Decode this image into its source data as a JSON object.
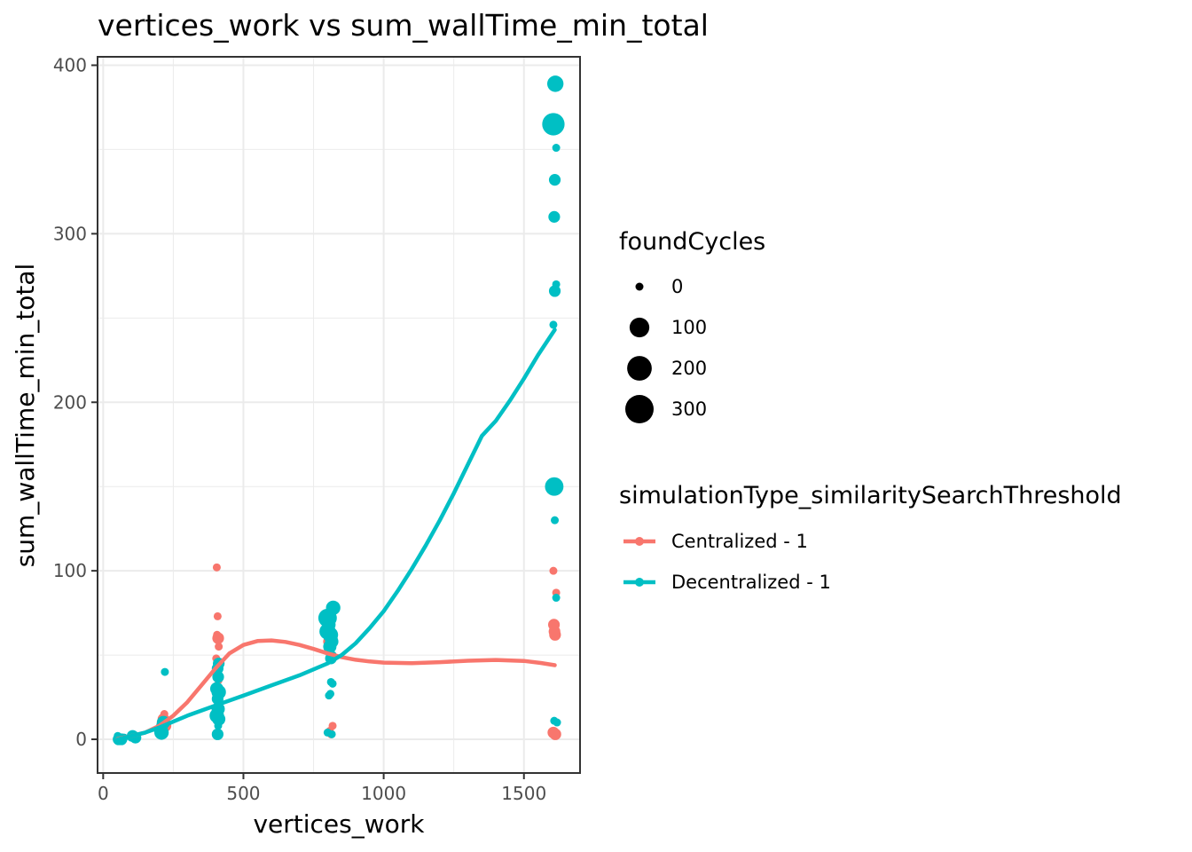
{
  "chart_data": {
    "type": "scatter",
    "title": "vertices_work  vs  sum_wallTime_min_total",
    "xlabel": "vertices_work",
    "ylabel": "sum_wallTime_min_total",
    "xlim": [
      -20,
      1700
    ],
    "ylim": [
      -20,
      405
    ],
    "xticks": [
      0,
      500,
      1000,
      1500
    ],
    "yticks": [
      0,
      100,
      200,
      300,
      400
    ],
    "grid": true,
    "size_legend": {
      "title": "foundCycles",
      "values": [
        0,
        100,
        200,
        300
      ]
    },
    "color_legend": {
      "title": "simulationType_similaritySearchThreshold",
      "entries": [
        "Centralized - 1",
        "Decentralized - 1"
      ]
    },
    "series": [
      {
        "name": "Centralized - 1",
        "color": "#f8766d",
        "points": [
          [
            52,
            1,
            0
          ],
          [
            60,
            0,
            0
          ],
          [
            70,
            1,
            0
          ],
          [
            105,
            1,
            0
          ],
          [
            112,
            2,
            0
          ],
          [
            208,
            4,
            10
          ],
          [
            210,
            6,
            10
          ],
          [
            212,
            10,
            10
          ],
          [
            215,
            12,
            10
          ],
          [
            218,
            15,
            0
          ],
          [
            222,
            8,
            10
          ],
          [
            405,
            102,
            0
          ],
          [
            408,
            73,
            0
          ],
          [
            406,
            62,
            0
          ],
          [
            410,
            60,
            10
          ],
          [
            412,
            55,
            0
          ],
          [
            403,
            48,
            0
          ],
          [
            407,
            42,
            0
          ],
          [
            411,
            35,
            0
          ],
          [
            805,
            58,
            10
          ],
          [
            815,
            60,
            10
          ],
          [
            810,
            50,
            0
          ],
          [
            808,
            5,
            0
          ],
          [
            812,
            3,
            0
          ],
          [
            818,
            8,
            0
          ],
          [
            1605,
            100,
            0
          ],
          [
            1615,
            87,
            0
          ],
          [
            1607,
            68,
            10
          ],
          [
            1611,
            62,
            10
          ],
          [
            1609,
            64,
            10
          ],
          [
            1605,
            4,
            10
          ],
          [
            1612,
            3,
            10
          ]
        ],
        "smooth": [
          [
            52,
            0.3
          ],
          [
            100,
            2
          ],
          [
            150,
            4
          ],
          [
            200,
            8
          ],
          [
            250,
            14
          ],
          [
            300,
            22
          ],
          [
            350,
            32
          ],
          [
            400,
            42
          ],
          [
            450,
            51
          ],
          [
            500,
            56
          ],
          [
            550,
            58.3
          ],
          [
            600,
            58.7
          ],
          [
            650,
            57.8
          ],
          [
            700,
            56
          ],
          [
            750,
            53.6
          ],
          [
            800,
            51
          ],
          [
            850,
            48.8
          ],
          [
            900,
            47.2
          ],
          [
            950,
            46.2
          ],
          [
            1000,
            45.5
          ],
          [
            1100,
            45.2
          ],
          [
            1200,
            45.8
          ],
          [
            1300,
            46.6
          ],
          [
            1400,
            47.1
          ],
          [
            1500,
            46.5
          ],
          [
            1560,
            45.3
          ],
          [
            1610,
            44
          ]
        ]
      },
      {
        "name": "Decentralized - 1",
        "color": "#00bfc4",
        "points": [
          [
            1612,
            389,
            50
          ],
          [
            1605,
            365,
            150
          ],
          [
            1615,
            351,
            0
          ],
          [
            1610,
            332,
            10
          ],
          [
            1608,
            310,
            10
          ],
          [
            1615,
            270,
            0
          ],
          [
            1610,
            266,
            10
          ],
          [
            1605,
            246,
            0
          ],
          [
            1608,
            150,
            80
          ],
          [
            1610,
            130,
            0
          ],
          [
            1615,
            84,
            0
          ],
          [
            1608,
            11,
            0
          ],
          [
            1618,
            10,
            0
          ],
          [
            220,
            40,
            0
          ],
          [
            210,
            8,
            10
          ],
          [
            205,
            5,
            20
          ],
          [
            215,
            10,
            20
          ],
          [
            208,
            4,
            30
          ],
          [
            52,
            2,
            0
          ],
          [
            55,
            0,
            10
          ],
          [
            65,
            0,
            10
          ],
          [
            75,
            1,
            0
          ],
          [
            100,
            1,
            0
          ],
          [
            105,
            2,
            10
          ],
          [
            115,
            1,
            10
          ],
          [
            412,
            45,
            10
          ],
          [
            408,
            42,
            10
          ],
          [
            410,
            37,
            10
          ],
          [
            405,
            30,
            20
          ],
          [
            412,
            28,
            30
          ],
          [
            408,
            24,
            10
          ],
          [
            410,
            18,
            20
          ],
          [
            405,
            14,
            30
          ],
          [
            412,
            12,
            20
          ],
          [
            410,
            8,
            0
          ],
          [
            408,
            3,
            10
          ],
          [
            405,
            2,
            0
          ],
          [
            800,
            72,
            80
          ],
          [
            820,
            78,
            30
          ],
          [
            805,
            68,
            20
          ],
          [
            810,
            62,
            40
          ],
          [
            815,
            58,
            20
          ],
          [
            800,
            64,
            50
          ],
          [
            808,
            55,
            20
          ],
          [
            812,
            48,
            10
          ],
          [
            818,
            50,
            0
          ],
          [
            812,
            34,
            0
          ],
          [
            818,
            33,
            0
          ],
          [
            805,
            26,
            0
          ],
          [
            810,
            27,
            0
          ],
          [
            800,
            4,
            0
          ],
          [
            815,
            3,
            0
          ]
        ],
        "smooth": [
          [
            52,
            0
          ],
          [
            100,
            2
          ],
          [
            150,
            4
          ],
          [
            200,
            7
          ],
          [
            300,
            14
          ],
          [
            400,
            20
          ],
          [
            500,
            26
          ],
          [
            600,
            32
          ],
          [
            700,
            38
          ],
          [
            800,
            45
          ],
          [
            850,
            50
          ],
          [
            900,
            57
          ],
          [
            950,
            66
          ],
          [
            1000,
            76
          ],
          [
            1050,
            88
          ],
          [
            1100,
            101
          ],
          [
            1150,
            115
          ],
          [
            1200,
            130
          ],
          [
            1250,
            146
          ],
          [
            1300,
            163
          ],
          [
            1350,
            180
          ],
          [
            1400,
            189
          ],
          [
            1450,
            201
          ],
          [
            1500,
            214
          ],
          [
            1550,
            228
          ],
          [
            1610,
            243
          ]
        ]
      }
    ]
  }
}
